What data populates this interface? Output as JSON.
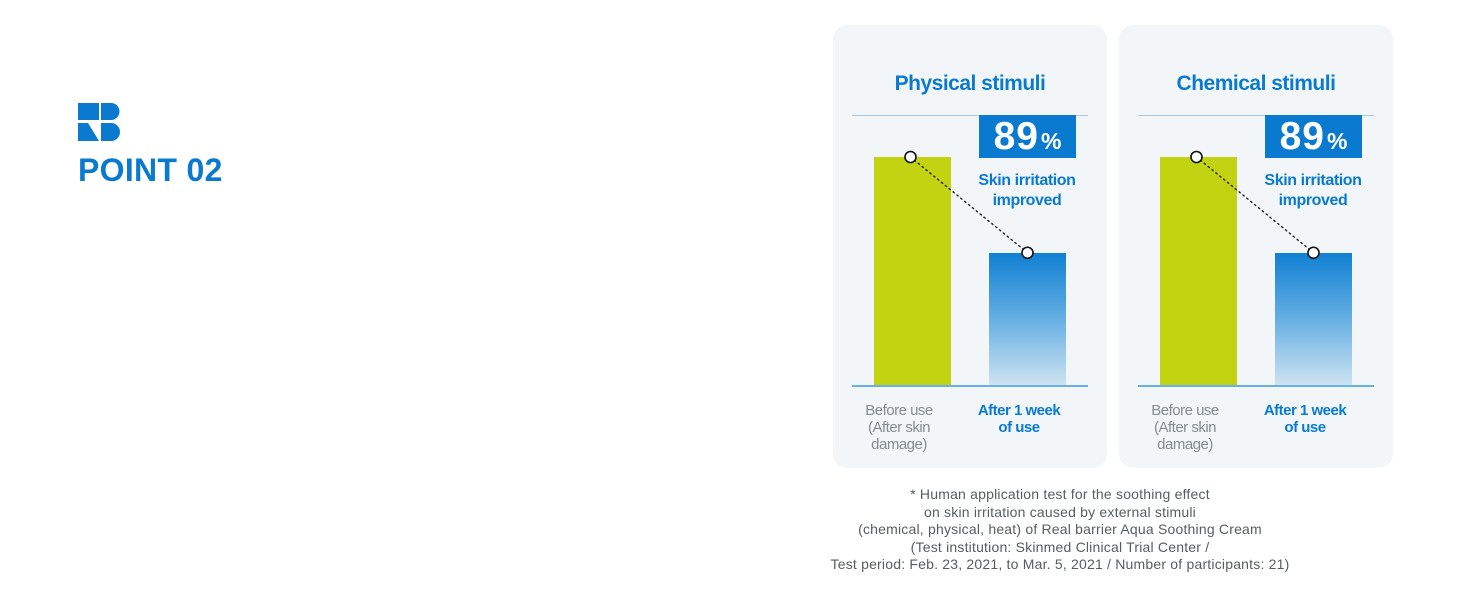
{
  "header": {
    "logo_icon": "rb-brand-logo-icon",
    "point_label": "POINT 02"
  },
  "colors": {
    "brand_blue": "#0a7ad1",
    "before_bar": "#c2d312",
    "panel_bg": "#f2f6f9",
    "label_gray": "#858c92"
  },
  "chart_data": [
    {
      "type": "bar",
      "title": "Physical stimuli",
      "categories": [
        "Before use (After skin damage)",
        "After 1 week of use"
      ],
      "values": [
        100,
        58
      ],
      "ylim": [
        0,
        100
      ],
      "improvement": {
        "value": "89",
        "unit": "%",
        "caption_lines": [
          "Skin irritation",
          "improved"
        ]
      },
      "label_lines": [
        [
          "Before use",
          "(After skin",
          "damage)"
        ],
        [
          "After 1 week",
          "of use"
        ]
      ]
    },
    {
      "type": "bar",
      "title": "Chemical stimuli",
      "categories": [
        "Before use (After skin damage)",
        "After 1 week of use"
      ],
      "values": [
        100,
        58
      ],
      "ylim": [
        0,
        100
      ],
      "improvement": {
        "value": "89",
        "unit": "%",
        "caption_lines": [
          "Skin irritation",
          "improved"
        ]
      },
      "label_lines": [
        [
          "Before use",
          "(After skin",
          "damage)"
        ],
        [
          "After 1 week",
          "of use"
        ]
      ]
    }
  ],
  "footnote_lines": [
    "* Human application test for the soothing effect",
    "on skin irritation caused by external stimuli",
    "(chemical, physical, heat) of Real barrier Aqua Soothing Cream",
    "(Test institution: Skinmed Clinical Trial Center /",
    "Test period: Feb. 23, 2021, to Mar. 5, 2021 / Number of participants: 21)"
  ]
}
